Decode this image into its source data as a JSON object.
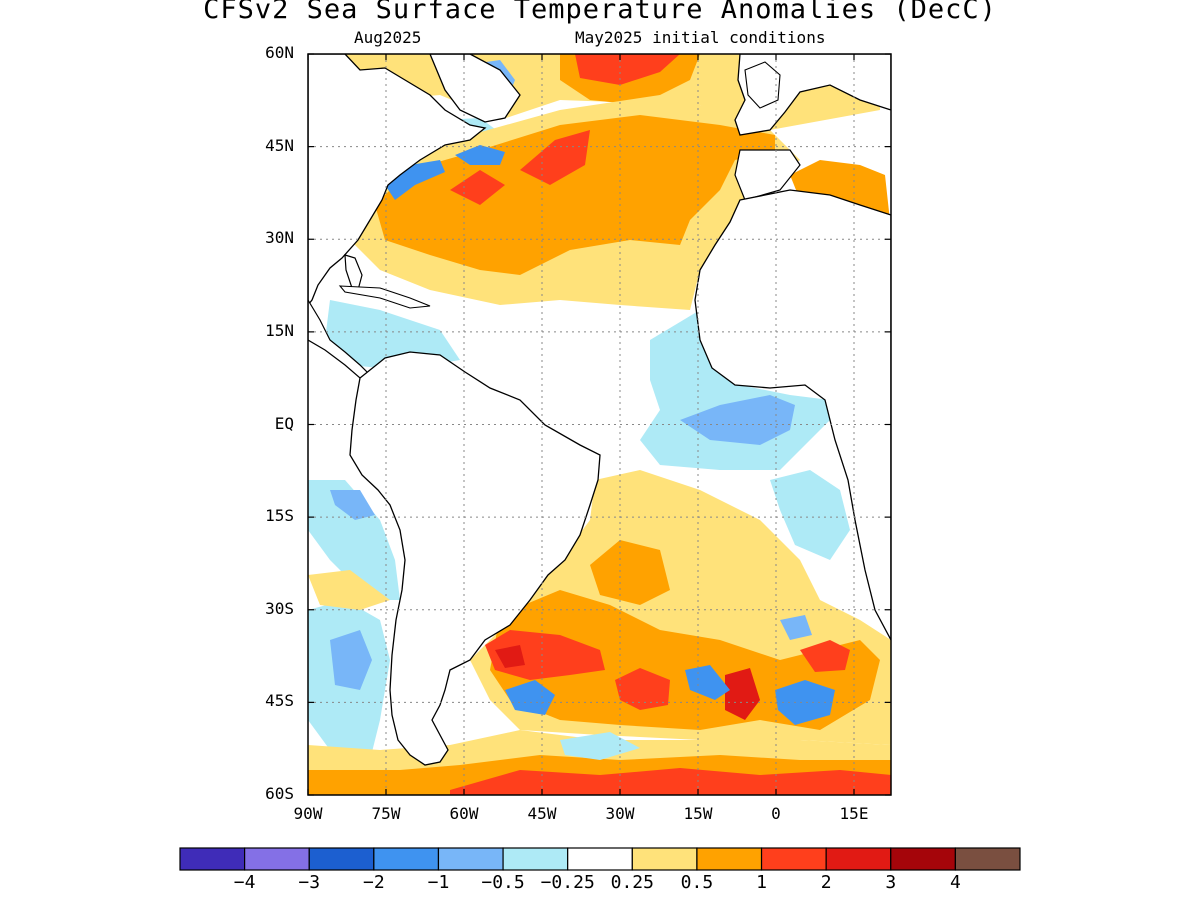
{
  "title": "CFSv2 Sea Surface Temperature Anomalies (DecC)",
  "subtitle_left": "Aug2025",
  "subtitle_right": "May2025 initial conditions",
  "lat_labels": [
    "60N",
    "45N",
    "30N",
    "15N",
    "EQ",
    "15S",
    "30S",
    "45S",
    "60S"
  ],
  "lon_labels": [
    "90W",
    "75W",
    "60W",
    "45W",
    "30W",
    "15W",
    "0",
    "15E"
  ],
  "colorbar": {
    "colors": [
      "#3f2cb8",
      "#8470e6",
      "#1c5fd0",
      "#3f93f0",
      "#78b6f8",
      "#aeeaf6",
      "#ffffff",
      "#ffe27a",
      "#ffa200",
      "#ff3f1c",
      "#e11a14",
      "#a5050a",
      "#7a4f40"
    ],
    "labels": [
      "−4",
      "−3",
      "−2",
      "−1",
      "−0.5",
      "−0.25",
      "0.25",
      "0.5",
      "1",
      "2",
      "3",
      "4"
    ]
  },
  "colors": {
    "land": "#ffffff",
    "ocean_neutral": "#ffffff",
    "light_yellow": "#ffe27a",
    "orange": "#ffa200",
    "red_orange": "#ff3f1c",
    "red": "#e11a14",
    "dark_red": "#a5050a",
    "light_cyan": "#aeeaf6",
    "light_blue": "#78b6f8",
    "blue": "#3f93f0",
    "mid_blue": "#1c5fd0"
  }
}
